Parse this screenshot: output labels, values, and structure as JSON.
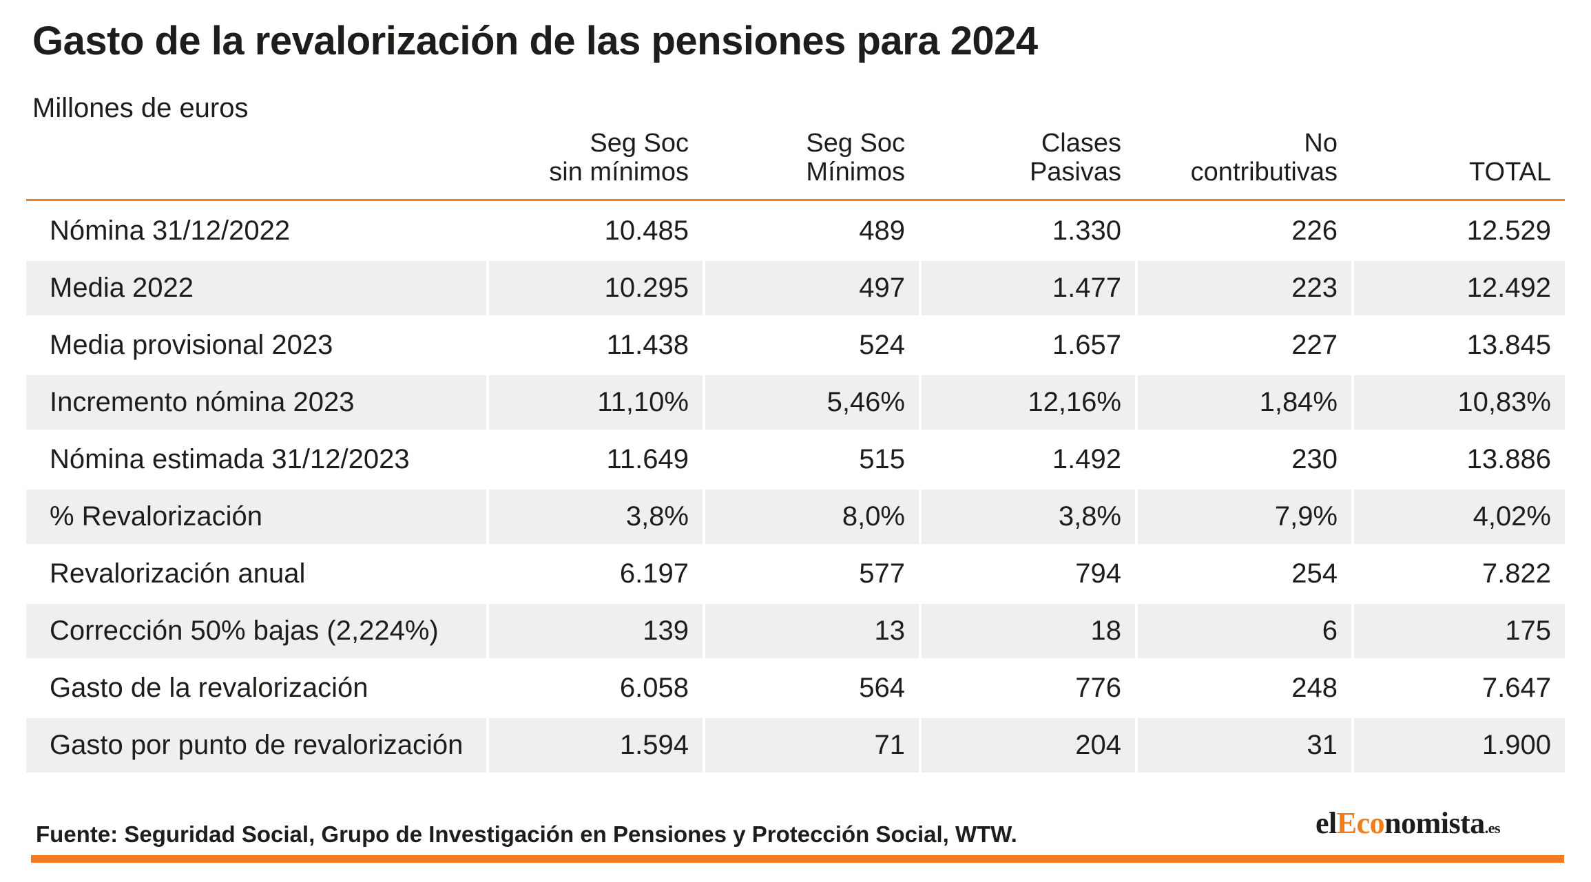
{
  "title": "Gasto de la revalorización de las pensiones para 2024",
  "subtitle": "Millones de euros",
  "source": "Fuente: Seguridad Social, Grupo de Investigación en Pensiones y Protección Social, WTW.",
  "logo": {
    "part1": "el",
    "part2": "Eco",
    "part3": "nomista",
    "tld": ".es"
  },
  "colors": {
    "accent": "#f07d1a",
    "row_shade": "#efefef",
    "text": "#1d1d1b"
  },
  "chart_data": {
    "type": "table",
    "title": "Gasto de la revalorización de las pensiones para 2024",
    "subtitle": "Millones de euros",
    "columns": [
      {
        "line1": "Seg Soc",
        "line2": "sin mínimos"
      },
      {
        "line1": "Seg Soc",
        "line2": "Mínimos"
      },
      {
        "line1": "Clases",
        "line2": "Pasivas"
      },
      {
        "line1": "No",
        "line2": "contributivas"
      },
      {
        "line1": "",
        "line2": "TOTAL"
      }
    ],
    "rows": [
      {
        "label": "Nómina 31/12/2022",
        "values": [
          "10.485",
          "489",
          "1.330",
          "226",
          "12.529"
        ]
      },
      {
        "label": "Media 2022",
        "values": [
          "10.295",
          "497",
          "1.477",
          "223",
          "12.492"
        ]
      },
      {
        "label": "Media provisional 2023",
        "values": [
          "11.438",
          "524",
          "1.657",
          "227",
          "13.845"
        ]
      },
      {
        "label": "Incremento nómina 2023",
        "values": [
          "11,10%",
          "5,46%",
          "12,16%",
          "1,84%",
          "10,83%"
        ]
      },
      {
        "label": "Nómina estimada 31/12/2023",
        "values": [
          "11.649",
          "515",
          "1.492",
          "230",
          "13.886"
        ]
      },
      {
        "label": "% Revalorización",
        "values": [
          "3,8%",
          "8,0%",
          "3,8%",
          "7,9%",
          "4,02%"
        ]
      },
      {
        "label": "Revalorización anual",
        "values": [
          "6.197",
          "577",
          "794",
          "254",
          "7.822"
        ]
      },
      {
        "label": "Corrección 50% bajas (2,224%)",
        "values": [
          "139",
          "13",
          "18",
          "6",
          "175"
        ]
      },
      {
        "label": "Gasto de la revalorización",
        "values": [
          "6.058",
          "564",
          "776",
          "248",
          "7.647"
        ]
      },
      {
        "label": "Gasto por punto de revalorización",
        "values": [
          "1.594",
          "71",
          "204",
          "31",
          "1.900"
        ]
      }
    ]
  }
}
